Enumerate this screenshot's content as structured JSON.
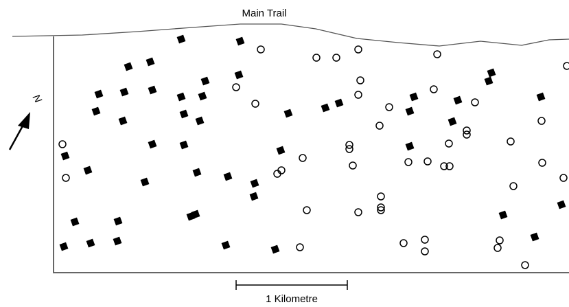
{
  "map": {
    "trail_label": "Main Trail",
    "north_label": "N",
    "scale_label": "1 Kilometre"
  }
}
